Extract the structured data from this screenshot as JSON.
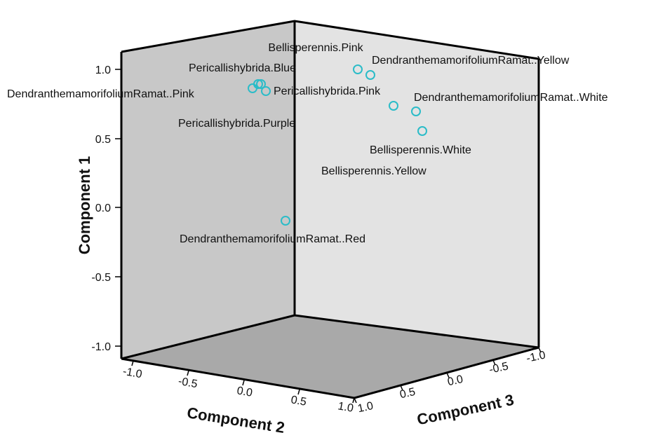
{
  "chart_data": {
    "type": "scatter",
    "title": "",
    "axes": {
      "z": {
        "label": "Component 1",
        "ticks": [
          "-1.0",
          "-0.5",
          "0.0",
          "0.5",
          "1.0"
        ],
        "range": [
          -1.0,
          1.0
        ]
      },
      "x": {
        "label": "Component 2",
        "ticks": [
          "-1.0",
          "-0.5",
          "0.0",
          "0.5",
          "1.0"
        ],
        "range": [
          -1.0,
          1.0
        ]
      },
      "y": {
        "label": "Component 3",
        "ticks": [
          "1.0",
          "0.5",
          "0.0",
          "-0.5",
          "-1.0"
        ],
        "range": [
          1.0,
          -1.0
        ]
      }
    },
    "marker_color": "#2bbcc8",
    "points": [
      {
        "label": "Bellisperennis.Pink",
        "c1": 0.98
      },
      {
        "label": "DendranthemamorifoliumRamat..Yellow",
        "c1": 0.96
      },
      {
        "label": "Pericallishybrida.Blue",
        "c1": 0.88
      },
      {
        "label": "Pericallishybrida.Pink",
        "c1": 0.87
      },
      {
        "label": "DendranthemamorifoliumRamat..Pink",
        "c1": 0.86
      },
      {
        "label": "Pericallishybrida.Purple",
        "c1": 0.85
      },
      {
        "label": "DendranthemamorifoliumRamat..White",
        "c1": 0.7
      },
      {
        "label": "Bellisperennis.White",
        "c1": 0.67
      },
      {
        "label": "Bellisperennis.Yellow",
        "c1": 0.55
      },
      {
        "label": "DendranthemamorifoliumRamat..Red",
        "c1": -0.09
      }
    ]
  }
}
